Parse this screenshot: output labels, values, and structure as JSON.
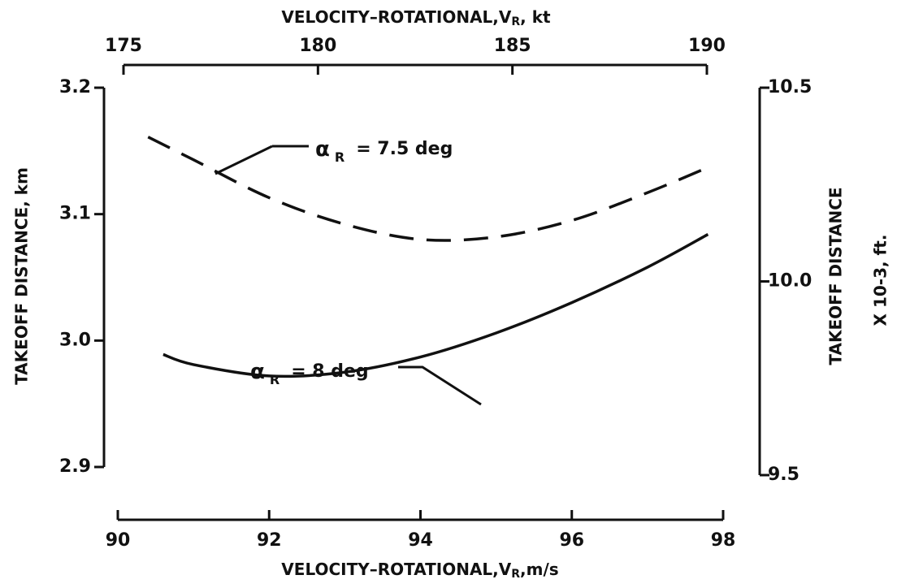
{
  "chart_data": {
    "type": "line",
    "x_label": {
      "text": "VELOCITY–ROTATIONAL,V",
      "subscript": "R",
      "unit": ",m/s"
    },
    "x2_label": {
      "text": "VELOCITY–ROTATIONAL,V",
      "subscript": "R",
      "unit": ", kt"
    },
    "y_label": "TAKEOFF DISTANCE, km",
    "y2_label": [
      "TAKEOFF DISTANCE",
      "X 10-3, ft."
    ],
    "xlim": [
      90,
      98
    ],
    "xticks": [
      90,
      92,
      94,
      96,
      98
    ],
    "x2lim": [
      175,
      190
    ],
    "x2ticks": [
      175,
      180,
      185,
      190
    ],
    "ylim": [
      2.9,
      3.2
    ],
    "yticks": [
      2.9,
      {
        "value": 3,
        "label": "3.0"
      },
      3.1,
      3.2
    ],
    "y2lim": [
      9.5,
      10.5
    ],
    "y2ticks": [
      9.5,
      {
        "value": 10,
        "label": "10.0"
      },
      10.5
    ],
    "grid": false,
    "series": [
      {
        "color": "#111111",
        "dash": true,
        "x": [
          90.4,
          91,
          92,
          93,
          94,
          95,
          96,
          97,
          97.8
        ],
        "values": [
          3.161,
          3.143,
          3.113,
          3.092,
          3.08,
          3.082,
          3.095,
          3.117,
          3.137
        ]
      },
      {
        "color": "#111111",
        "dash": false,
        "x": [
          90.6,
          91,
          92,
          93,
          94,
          95,
          96,
          97,
          97.8
        ],
        "values": [
          2.989,
          2.981,
          2.972,
          2.975,
          2.987,
          3.006,
          3.03,
          3.058,
          3.084
        ]
      }
    ],
    "annotations": [
      {
        "symbol": "α",
        "subscript": "R",
        "text": "=  7.5 deg"
      },
      {
        "symbol": "α",
        "subscript": "R",
        "text": "= 8 deg"
      }
    ]
  }
}
